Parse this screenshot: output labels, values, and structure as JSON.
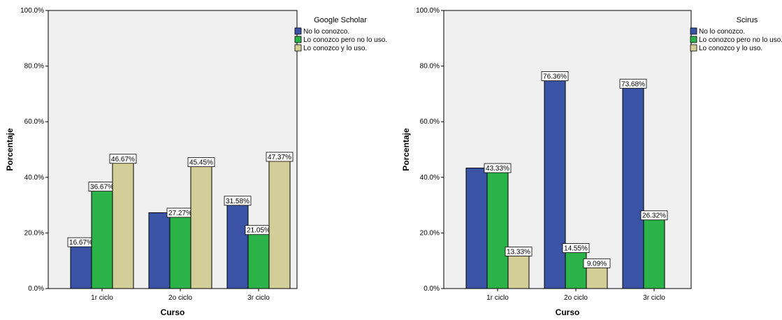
{
  "colors": {
    "series": [
      "#3a53a4",
      "#2bb34a",
      "#d3cd97"
    ],
    "plot_bg": "#f0f0f0"
  },
  "chart_data": [
    {
      "type": "bar",
      "legend_title": "Google Scholar",
      "xlabel": "Curso",
      "ylabel": "Porcentaje",
      "categories": [
        "1r ciclo",
        "2o ciclo",
        "3r ciclo"
      ],
      "ylim": [
        0,
        100
      ],
      "yticks": [
        "0.0%",
        "20.0%",
        "40.0%",
        "60.0%",
        "80.0%",
        "100.0%"
      ],
      "legend_position": "right",
      "series": [
        {
          "name": "No lo conozco.",
          "values": [
            16.67,
            27.27,
            31.58
          ],
          "labels": [
            "16.67%",
            "",
            "31.58%"
          ]
        },
        {
          "name": "Lo conozco pero no lo uso.",
          "values": [
            36.67,
            27.27,
            21.05
          ],
          "labels": [
            "36.67%",
            "27.27%",
            "21.05%"
          ]
        },
        {
          "name": "Lo conozco y lo uso.",
          "values": [
            46.67,
            45.45,
            47.37
          ],
          "labels": [
            "46.67%",
            "45.45%",
            "47.37%"
          ]
        }
      ]
    },
    {
      "type": "bar",
      "legend_title": "Scirus",
      "xlabel": "Curso",
      "ylabel": "Porcentaje",
      "categories": [
        "1r ciclo",
        "2o ciclo",
        "3r ciclo"
      ],
      "ylim": [
        0,
        100
      ],
      "yticks": [
        "0.0%",
        "20.0%",
        "40.0%",
        "60.0%",
        "80.0%",
        "100.0%"
      ],
      "legend_position": "right",
      "series": [
        {
          "name": "No lo conozco.",
          "values": [
            43.33,
            76.36,
            73.68
          ],
          "labels": [
            "",
            "76.36%",
            "73.68%"
          ]
        },
        {
          "name": "Lo conozco pero no lo uso.",
          "values": [
            43.33,
            14.55,
            26.32
          ],
          "labels": [
            "43.33%",
            "14.55%",
            "26.32%"
          ]
        },
        {
          "name": "Lo conozco y lo uso.",
          "values": [
            13.33,
            9.09,
            0
          ],
          "labels": [
            "13.33%",
            "9.09%",
            ""
          ]
        }
      ]
    }
  ]
}
